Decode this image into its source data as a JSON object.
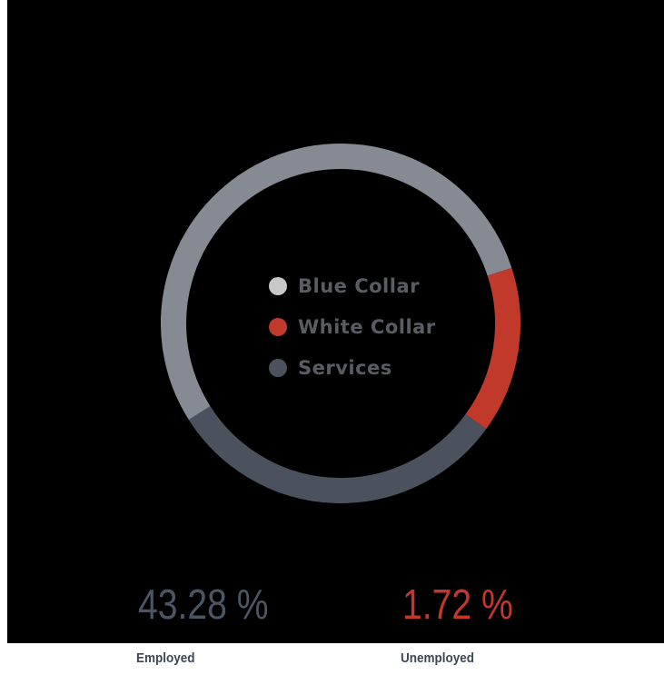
{
  "chart_data": {
    "type": "pie",
    "categories": [
      "Blue Collar",
      "White Collar",
      "Services"
    ],
    "values": [
      54,
      15,
      31
    ],
    "colors": [
      "#868a93",
      "#c0392b",
      "#4b525d"
    ],
    "legend_placement": "center",
    "legend_swatch_colors": [
      "#c8c8c8",
      "#c0392b",
      "#4b525d"
    ]
  },
  "stats": {
    "employed": {
      "value": "43.28 %",
      "label": "Employed",
      "color": "#4b5563"
    },
    "unemployed": {
      "value": "1.72 %",
      "label": "Unemployed",
      "color": "#c0392b"
    }
  }
}
